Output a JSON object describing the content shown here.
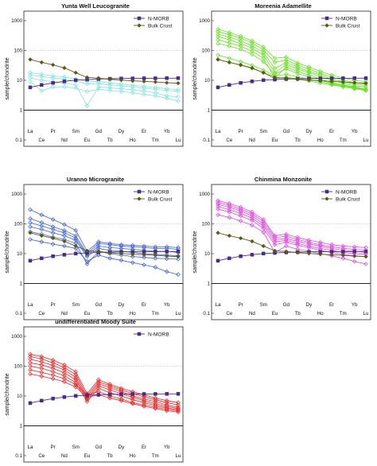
{
  "chart_data": [
    {
      "type": "line",
      "title": "Yunta Well Leucogranite",
      "ylabel": "sample/chondrite",
      "ylog": true,
      "ylim": [
        0.1,
        1000
      ],
      "yticks": [
        "0.1",
        "1",
        "10",
        "100",
        "1000"
      ],
      "categories": [
        "La",
        "Ce",
        "Pr",
        "Nd",
        "Sm",
        "Eu",
        "Gd",
        "Tb",
        "Dy",
        "Ho",
        "Er",
        "Tm",
        "Yb",
        "Lu"
      ],
      "reference_lines": [
        1,
        100
      ],
      "legend": {
        "position": "top-right",
        "entries": [
          "N-MORB",
          "Bulk Crust"
        ]
      },
      "sample_color": "#7fe3dd",
      "series": [
        {
          "name": "N-MORB",
          "kind": "reference",
          "color": "#4b2a8a",
          "marker": "square",
          "values": [
            5.8,
            7.0,
            8.2,
            9.2,
            10.1,
            10.6,
            11.0,
            11.3,
            11.5,
            11.6,
            11.7,
            11.7,
            11.8,
            11.8
          ]
        },
        {
          "name": "Bulk Crust",
          "kind": "reference",
          "color": "#5a5a14",
          "marker": "diamond",
          "values": [
            50,
            40,
            33,
            26,
            18,
            12.5,
            11.8,
            10.8,
            10.2,
            9.6,
            9.2,
            8.8,
            8.3,
            8.0
          ]
        },
        {
          "kind": "sample",
          "values": [
            18,
            16,
            14,
            13,
            11,
            9.5,
            9.0,
            8.2,
            7.5,
            6.8,
            6.2,
            5.7,
            5.2,
            4.9
          ]
        },
        {
          "kind": "sample",
          "values": [
            15,
            13.5,
            12,
            11,
            9.5,
            7.5,
            7.8,
            7.0,
            6.5,
            6.0,
            5.5,
            5.0,
            4.6,
            4.3
          ]
        },
        {
          "kind": "sample",
          "values": [
            12,
            10,
            9.0,
            8.0,
            7.0,
            1.4,
            6.0,
            5.6,
            5.2,
            4.8,
            4.4,
            3.8,
            3.0,
            2.8
          ]
        },
        {
          "kind": "sample",
          "values": [
            9.0,
            4.5,
            6.0,
            6.0,
            5.5,
            4.2,
            5.0,
            4.6,
            4.2,
            3.8,
            3.4,
            3.0,
            2.5,
            2.0
          ]
        }
      ]
    },
    {
      "type": "line",
      "title": "Moreenia Adamellite",
      "ylabel": "sample/chondrite",
      "ylog": true,
      "ylim": [
        0.1,
        1000
      ],
      "yticks": [
        "0.1",
        "1",
        "10",
        "100",
        "1000"
      ],
      "categories": [
        "La",
        "Ce",
        "Pr",
        "Nd",
        "Sm",
        "Eu",
        "Gd",
        "Tb",
        "Dy",
        "Ho",
        "Er",
        "Tm",
        "Yb",
        "Lu"
      ],
      "reference_lines": [
        1,
        100
      ],
      "legend": {
        "position": "top-right",
        "entries": [
          "N-MORB",
          "Bulk Crust"
        ]
      },
      "sample_color": "#66dd22",
      "series": [
        {
          "name": "N-MORB",
          "kind": "reference",
          "color": "#4b2a8a",
          "marker": "square",
          "values": [
            5.8,
            7.0,
            8.2,
            9.2,
            10.1,
            10.6,
            11.0,
            11.3,
            11.5,
            11.6,
            11.7,
            11.7,
            11.8,
            11.8
          ]
        },
        {
          "name": "Bulk Crust",
          "kind": "reference",
          "color": "#5a5a14",
          "marker": "diamond",
          "values": [
            50,
            40,
            33,
            26,
            18,
            12.5,
            11.8,
            10.8,
            10.2,
            9.6,
            9.2,
            8.8,
            8.3,
            8.0
          ]
        },
        {
          "kind": "sample",
          "values": [
            520,
            400,
            300,
            210,
            130,
            55,
            60,
            38,
            28,
            20,
            15,
            12,
            10,
            9.0
          ]
        },
        {
          "kind": "sample",
          "values": [
            430,
            340,
            260,
            180,
            105,
            40,
            48,
            32,
            24,
            17,
            13,
            10,
            8.5,
            7.5
          ]
        },
        {
          "kind": "sample",
          "values": [
            350,
            280,
            210,
            145,
            85,
            25,
            40,
            28,
            20,
            15,
            11,
            9.0,
            7.5,
            6.8
          ]
        },
        {
          "kind": "sample",
          "values": [
            290,
            230,
            170,
            120,
            70,
            18,
            34,
            24,
            18,
            13,
            10,
            8.0,
            6.5,
            6.0
          ]
        },
        {
          "kind": "sample",
          "values": [
            230,
            180,
            140,
            95,
            55,
            12,
            28,
            20,
            15,
            11,
            8.5,
            7.0,
            6.0,
            5.0
          ]
        },
        {
          "kind": "sample",
          "values": [
            170,
            140,
            110,
            75,
            42,
            16,
            24,
            17,
            13,
            10,
            8.0,
            6.5,
            5.5,
            4.8
          ]
        },
        {
          "kind": "sample",
          "values": [
            70,
            55,
            42,
            32,
            22,
            14,
            16,
            13,
            11,
            9.0,
            7.5,
            6.5,
            5.8,
            5.0
          ]
        },
        {
          "kind": "sample",
          "values": [
            50,
            40,
            32,
            25,
            18,
            11,
            13,
            11,
            9.5,
            8.0,
            7.0,
            6.0,
            5.2,
            4.5
          ]
        }
      ]
    },
    {
      "type": "line",
      "title": "Uranno Microgranite",
      "ylabel": "sample/chondrite",
      "ylog": true,
      "ylim": [
        0.1,
        1000
      ],
      "yticks": [
        "0.1",
        "1",
        "10",
        "100",
        "1000"
      ],
      "categories": [
        "La",
        "Ce",
        "Pr",
        "Nd",
        "Sm",
        "Eu",
        "Gd",
        "Tb",
        "Dy",
        "Ho",
        "Er",
        "Tm",
        "Yb",
        "Lu"
      ],
      "reference_lines": [
        1,
        100
      ],
      "legend": {
        "position": "top-right",
        "entries": [
          "N-MORB",
          "Bulk Crust"
        ]
      },
      "sample_color": "#3a5fd0",
      "series": [
        {
          "name": "N-MORB",
          "kind": "reference",
          "color": "#4b2a8a",
          "marker": "square",
          "values": [
            5.8,
            7.0,
            8.2,
            9.2,
            10.1,
            10.6,
            11.0,
            11.3,
            11.5,
            11.6,
            11.7,
            11.7,
            11.8,
            11.8
          ]
        },
        {
          "name": "Bulk Crust",
          "kind": "reference",
          "color": "#5a5a14",
          "marker": "diamond",
          "values": [
            50,
            40,
            33,
            26,
            18,
            12.5,
            11.8,
            10.8,
            10.2,
            9.6,
            9.2,
            8.8,
            8.3,
            8.0
          ]
        },
        {
          "kind": "sample",
          "values": [
            300,
            200,
            140,
            95,
            60,
            12,
            25,
            22,
            20,
            19,
            18,
            17,
            17,
            16
          ]
        },
        {
          "kind": "sample",
          "values": [
            150,
            110,
            80,
            60,
            40,
            10,
            22,
            20,
            18,
            17,
            16,
            15,
            15,
            14
          ]
        },
        {
          "kind": "sample",
          "values": [
            110,
            85,
            65,
            50,
            33,
            9.0,
            18,
            16,
            15,
            14,
            13,
            12,
            12,
            11
          ]
        },
        {
          "kind": "sample",
          "values": [
            80,
            65,
            50,
            40,
            28,
            8.0,
            15,
            13,
            12,
            11,
            10,
            9.5,
            9.0,
            8.5
          ]
        },
        {
          "kind": "sample",
          "values": [
            55,
            45,
            36,
            30,
            22,
            4.5,
            12,
            10,
            9.0,
            8.0,
            7.5,
            7.0,
            6.8,
            6.5
          ]
        },
        {
          "kind": "sample",
          "values": [
            30,
            25,
            21,
            18,
            15,
            5.5,
            9.0,
            7.0,
            6.0,
            5.0,
            4.2,
            3.5,
            2.5,
            2.0
          ]
        }
      ]
    },
    {
      "type": "line",
      "title": "Chinmina Monzonite",
      "ylabel": "sample/chondrite",
      "ylog": true,
      "ylim": [
        0.1,
        1000
      ],
      "yticks": [
        "0.1",
        "1",
        "10",
        "100",
        "1000"
      ],
      "categories": [
        "La",
        "Ce",
        "Pr",
        "Nd",
        "Sm",
        "Eu",
        "Gd",
        "Tb",
        "Dy",
        "Ho",
        "Er",
        "Tm",
        "Yb",
        "Lu"
      ],
      "reference_lines": [
        1,
        100
      ],
      "legend": {
        "position": "top-right",
        "entries": [
          "N-MORB",
          "Bulk Crust"
        ]
      },
      "sample_color": "#e040e0",
      "series": [
        {
          "name": "N-MORB",
          "kind": "reference",
          "color": "#4b2a8a",
          "marker": "square",
          "values": [
            5.8,
            7.0,
            8.2,
            9.2,
            10.1,
            10.6,
            11.0,
            11.3,
            11.5,
            11.6,
            11.7,
            11.7,
            11.8,
            11.8
          ]
        },
        {
          "name": "Bulk Crust",
          "kind": "reference",
          "color": "#5a5a14",
          "marker": "diamond",
          "values": [
            50,
            40,
            33,
            26,
            18,
            12.5,
            11.8,
            10.8,
            10.2,
            9.6,
            9.2,
            8.8,
            8.3,
            8.0
          ]
        },
        {
          "kind": "sample",
          "values": [
            600,
            480,
            360,
            250,
            140,
            40,
            45,
            35,
            28,
            24,
            20,
            18,
            17,
            16
          ]
        },
        {
          "kind": "sample",
          "values": [
            520,
            420,
            310,
            215,
            120,
            35,
            38,
            30,
            24,
            20,
            17,
            15,
            14,
            13
          ]
        },
        {
          "kind": "sample",
          "values": [
            450,
            360,
            270,
            185,
            100,
            30,
            32,
            26,
            21,
            18,
            15,
            13,
            12,
            11
          ]
        },
        {
          "kind": "sample",
          "values": [
            380,
            300,
            225,
            155,
            85,
            25,
            28,
            22,
            18,
            15,
            13,
            11,
            10,
            9.5
          ]
        },
        {
          "kind": "sample",
          "values": [
            310,
            250,
            185,
            130,
            70,
            20,
            24,
            19,
            16,
            13,
            11,
            9.5,
            8.5,
            8.0
          ]
        },
        {
          "kind": "sample",
          "values": [
            200,
            165,
            125,
            90,
            52,
            11,
            18,
            14,
            12,
            10,
            8.5,
            7.0,
            5.5,
            4.5
          ]
        }
      ]
    },
    {
      "type": "line",
      "title": "undifferentiated Moody Suite",
      "ylabel": "sample/chondrite",
      "ylog": true,
      "ylim": [
        0.1,
        1000
      ],
      "yticks": [
        "0.1",
        "1",
        "10",
        "100",
        "1000"
      ],
      "categories": [
        "La",
        "Ce",
        "Pr",
        "Nd",
        "Sm",
        "Eu",
        "Gd",
        "Tb",
        "Dy",
        "Ho",
        "Er",
        "Tm",
        "Yb",
        "Lu"
      ],
      "reference_lines": [
        1,
        100
      ],
      "legend": {
        "position": "top-right",
        "entries": [
          "N-MORB"
        ]
      },
      "sample_color": "#e82020",
      "series": [
        {
          "name": "N-MORB",
          "kind": "reference",
          "color": "#4b2a8a",
          "marker": "square",
          "values": [
            5.8,
            7.0,
            8.2,
            9.2,
            10.1,
            10.6,
            11.0,
            11.3,
            11.5,
            11.6,
            11.7,
            11.7,
            11.8,
            11.8
          ]
        },
        {
          "kind": "sample",
          "values": [
            250,
            210,
            160,
            110,
            65,
            12,
            35,
            25,
            18,
            14,
            11,
            8.5,
            7.0,
            6.0
          ]
        },
        {
          "kind": "sample",
          "values": [
            210,
            175,
            130,
            90,
            52,
            10,
            30,
            22,
            16,
            12,
            9.5,
            7.5,
            6.0,
            5.0
          ]
        },
        {
          "kind": "sample",
          "values": [
            170,
            140,
            105,
            75,
            42,
            8.5,
            26,
            19,
            14,
            10,
            8.0,
            6.5,
            5.0,
            4.2
          ]
        },
        {
          "kind": "sample",
          "values": [
            130,
            110,
            85,
            60,
            35,
            7.5,
            22,
            16,
            12,
            9.0,
            7.0,
            5.5,
            4.5,
            3.8
          ]
        },
        {
          "kind": "sample",
          "values": [
            100,
            85,
            65,
            48,
            28,
            6.5,
            18,
            13,
            10,
            7.5,
            6.0,
            4.8,
            4.0,
            3.5
          ]
        },
        {
          "kind": "sample",
          "values": [
            75,
            62,
            50,
            38,
            24,
            11,
            14,
            10,
            8.0,
            6.0,
            5.0,
            4.2,
            3.6,
            3.2
          ]
        },
        {
          "kind": "sample",
          "values": [
            55,
            46,
            38,
            30,
            20,
            9.0,
            11,
            8.5,
            7.0,
            5.5,
            4.5,
            3.8,
            3.2,
            2.9
          ]
        }
      ]
    }
  ]
}
